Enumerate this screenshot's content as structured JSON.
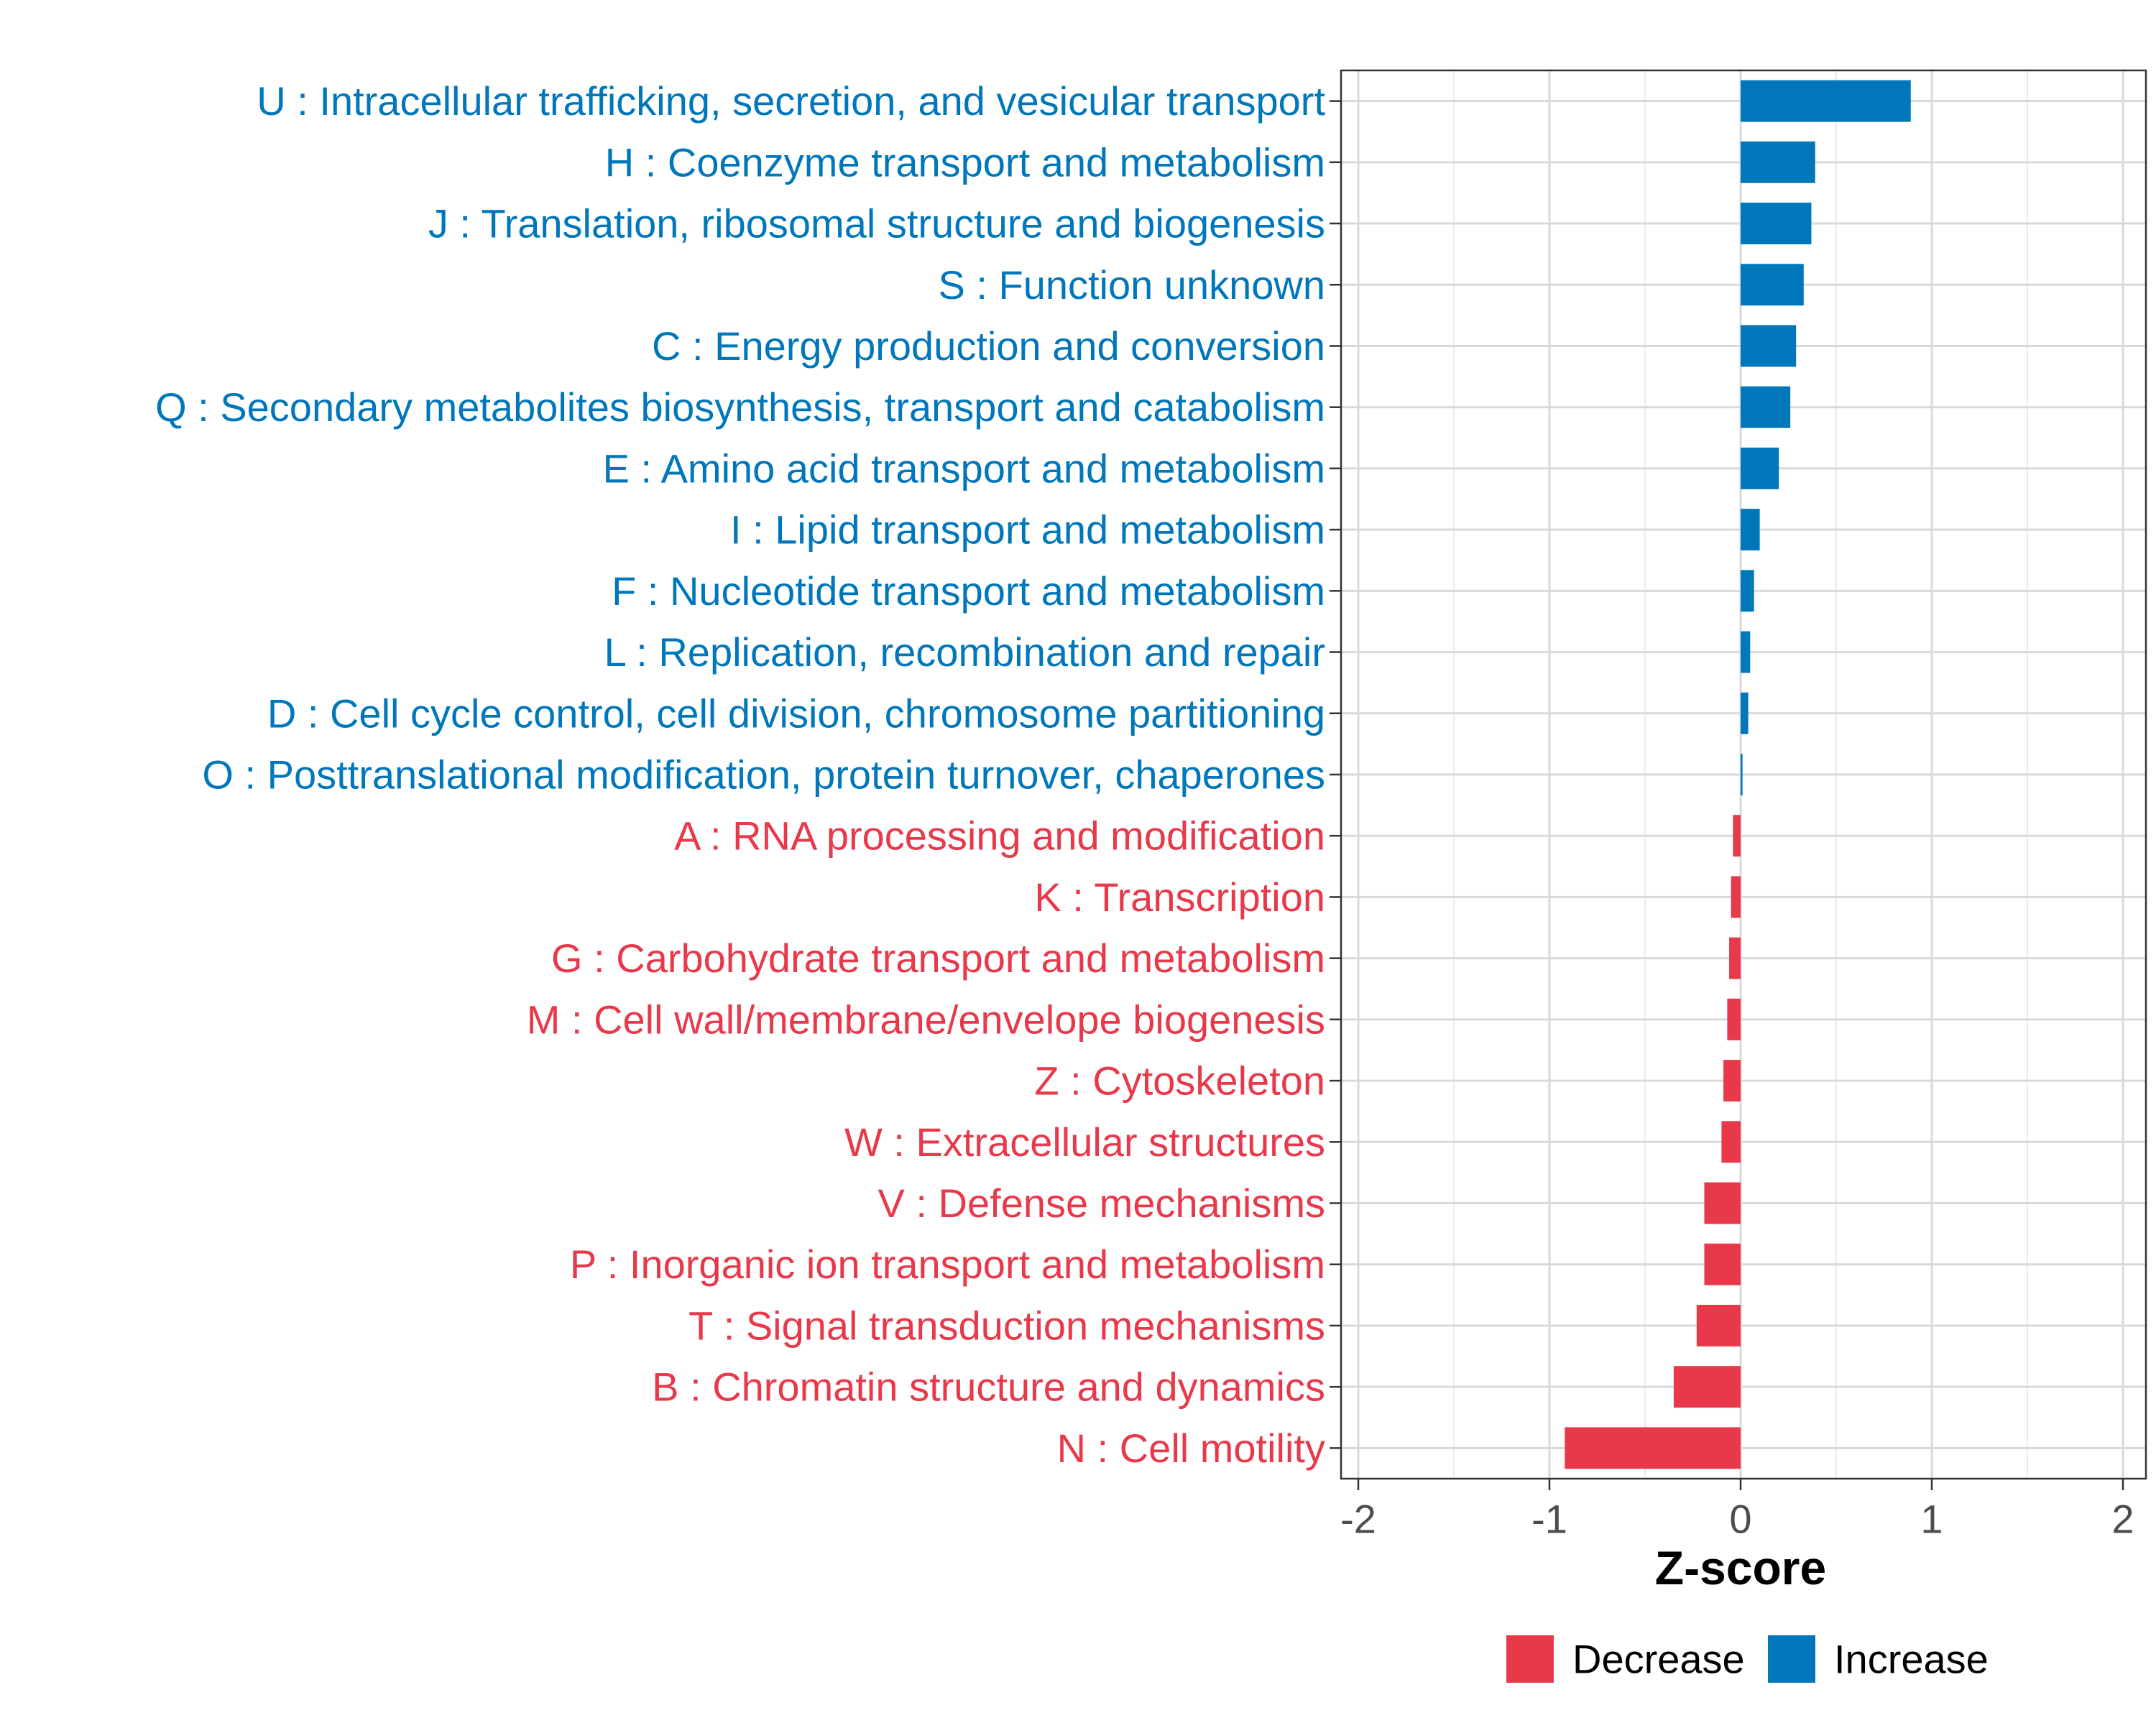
{
  "chart_data": {
    "type": "bar",
    "orientation": "horizontal",
    "title": "",
    "xlabel": "Z-score",
    "ylabel": "",
    "xlim": [
      -2.1,
      2.1
    ],
    "x_ticks": [
      -2,
      -1,
      0,
      1,
      2
    ],
    "x_tick_labels": [
      "-2",
      "-1",
      "0",
      "1",
      "2"
    ],
    "grid": true,
    "colors": {
      "Increase": "#0077BB",
      "Decrease": "#E8394A"
    },
    "legend": {
      "position": "bottom",
      "entries": [
        {
          "label": "Decrease",
          "color": "#E8394A"
        },
        {
          "label": "Increase",
          "color": "#0077BB"
        }
      ]
    },
    "categories": [
      "U : Intracellular trafficking, secretion, and vesicular transport",
      "H : Coenzyme transport and metabolism",
      "J : Translation, ribosomal structure and biogenesis",
      "S : Function unknown",
      "C : Energy production and conversion",
      "Q : Secondary metabolites biosynthesis, transport and catabolism",
      "E : Amino acid transport and metabolism",
      "I : Lipid transport and metabolism",
      "F : Nucleotide transport and metabolism",
      "L : Replication, recombination and repair",
      "D : Cell cycle control, cell division, chromosome partitioning",
      "O : Posttranslational modification, protein turnover, chaperones",
      "A : RNA processing and modification",
      "K : Transcription",
      "G : Carbohydrate transport and metabolism",
      "M : Cell wall/membrane/envelope biogenesis",
      "Z : Cytoskeleton",
      "W : Extracellular structures",
      "V : Defense mechanisms",
      "P : Inorganic ion transport and metabolism",
      "T : Signal transduction mechanisms",
      "B : Chromatin structure and dynamics",
      "N : Cell motility"
    ],
    "values": [
      0.89,
      0.39,
      0.37,
      0.33,
      0.29,
      0.26,
      0.2,
      0.1,
      0.07,
      0.05,
      0.04,
      0.01,
      -0.04,
      -0.05,
      -0.06,
      -0.07,
      -0.09,
      -0.1,
      -0.19,
      -0.19,
      -0.23,
      -0.35,
      -0.92
    ],
    "groups": [
      "Increase",
      "Increase",
      "Increase",
      "Increase",
      "Increase",
      "Increase",
      "Increase",
      "Increase",
      "Increase",
      "Increase",
      "Increase",
      "Increase",
      "Decrease",
      "Decrease",
      "Decrease",
      "Decrease",
      "Decrease",
      "Decrease",
      "Decrease",
      "Decrease",
      "Decrease",
      "Decrease",
      "Decrease"
    ]
  }
}
